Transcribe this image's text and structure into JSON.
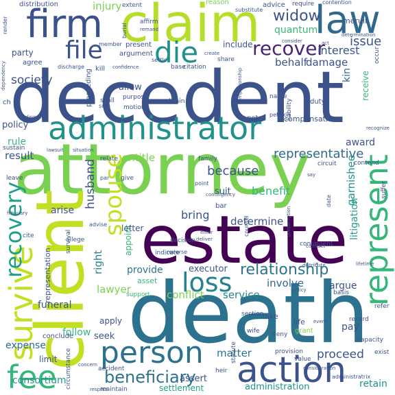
{
  "cloud": {
    "background": "#ffffff",
    "palette": {
      "purple": "#440154",
      "indigo": "#3b528b",
      "blue": "#31688e",
      "teal": "#21918c",
      "green": "#35b779",
      "lime": "#7ad151",
      "yellow": "#c2df23"
    },
    "words": [
      {
        "text": "decedent",
        "color": "#3b528b"
      },
      {
        "text": "attorney",
        "color": "#7ad151"
      },
      {
        "text": "death",
        "color": "#2c728e"
      },
      {
        "text": "estate",
        "color": "#440154"
      },
      {
        "text": "client",
        "color": "#c2df23"
      },
      {
        "text": "claim",
        "color": "#b5de2b"
      },
      {
        "text": "administrator",
        "color": "#21918c"
      },
      {
        "text": "firm",
        "color": "#3b528b"
      },
      {
        "text": "law",
        "color": "#31688e"
      },
      {
        "text": "action",
        "color": "#3b528b"
      },
      {
        "text": "person",
        "color": "#2c728e"
      },
      {
        "text": "survive",
        "color": "#c2df23"
      },
      {
        "text": "fee",
        "color": "#35b779"
      },
      {
        "text": "represent",
        "color": "#35b779"
      },
      {
        "text": "recovery",
        "color": "#1f9e89"
      },
      {
        "text": "loss",
        "color": "#26828e"
      },
      {
        "text": "spouse",
        "color": "#c2df23"
      },
      {
        "text": "die",
        "color": "#21918c"
      },
      {
        "text": "file",
        "color": "#3b528b"
      },
      {
        "text": "recover",
        "color": "#482475"
      },
      {
        "text": "beneficiary",
        "color": "#2c728e"
      },
      {
        "text": "widow",
        "color": "#3b528b"
      },
      {
        "text": "relationship",
        "color": "#2c728e"
      },
      {
        "text": "because",
        "color": "#3b528b"
      },
      {
        "text": "representative",
        "color": "#31688e"
      },
      {
        "text": "issue",
        "color": "#3b528b"
      },
      {
        "text": "husband",
        "color": "#3b528b"
      },
      {
        "text": "right",
        "color": "#26828e"
      },
      {
        "text": "society",
        "color": "#3b528b"
      },
      {
        "text": "injury",
        "color": "#7ad151"
      },
      {
        "text": "interest",
        "color": "#3b528b"
      },
      {
        "text": "behalf",
        "color": "#3b528b"
      },
      {
        "text": "damage",
        "color": "#3b528b"
      },
      {
        "text": "quantum",
        "color": "#35b779"
      },
      {
        "text": "litigation",
        "color": "#1f9e89"
      },
      {
        "text": "garnishee",
        "color": "#21918c"
      },
      {
        "text": "benefit",
        "color": "#35b779"
      },
      {
        "text": "determine",
        "color": "#3b528b"
      },
      {
        "text": "conflict",
        "color": "#7ad151"
      },
      {
        "text": "service",
        "color": "#26828e"
      },
      {
        "text": "bring",
        "color": "#3b528b"
      },
      {
        "text": "consortium",
        "color": "#21918c"
      },
      {
        "text": "administration",
        "color": "#21918c"
      },
      {
        "text": "settlement",
        "color": "#1f9e89"
      },
      {
        "text": "proceed",
        "color": "#3b528b"
      },
      {
        "text": "matter",
        "color": "#2c728e"
      },
      {
        "text": "lawyer",
        "color": "#7ad151"
      },
      {
        "text": "provide",
        "color": "#2c728e"
      },
      {
        "text": "executor",
        "color": "#3b528b"
      },
      {
        "text": "involve",
        "color": "#31688e"
      },
      {
        "text": "argue",
        "color": "#3b528b"
      },
      {
        "text": "policy",
        "color": "#3b528b"
      },
      {
        "text": "rule",
        "color": "#35b779"
      },
      {
        "text": "result",
        "color": "#3b528b"
      },
      {
        "text": "arise",
        "color": "#3b528b"
      },
      {
        "text": "entitle",
        "color": "#7ad151"
      },
      {
        "text": "award",
        "color": "#3b528b"
      },
      {
        "text": "suit",
        "color": "#3b528b"
      },
      {
        "text": "funeral",
        "color": "#3b528b"
      },
      {
        "text": "follow",
        "color": "#35b779"
      },
      {
        "text": "expense",
        "color": "#31688e"
      },
      {
        "text": "limit",
        "color": "#3b528b"
      },
      {
        "text": "seek",
        "color": "#3b528b"
      },
      {
        "text": "apply",
        "color": "#3b528b"
      },
      {
        "text": "allow",
        "color": "#3b528b"
      },
      {
        "text": "kin",
        "color": "#31688e"
      },
      {
        "text": "party",
        "color": "#3b528b"
      },
      {
        "text": "include",
        "color": "#3b528b"
      },
      {
        "text": "present",
        "color": "#3b528b"
      },
      {
        "text": "compensation",
        "color": "#3b528b"
      },
      {
        "text": "receive",
        "color": "#35b779"
      },
      {
        "text": "appoint",
        "color": "#35b779"
      },
      {
        "text": "letter",
        "color": "#3b528b"
      },
      {
        "text": "representation",
        "color": "#3b528b"
      },
      {
        "text": "asset",
        "color": "#35b779"
      },
      {
        "text": "pay",
        "color": "#3b528b"
      },
      {
        "text": "assert",
        "color": "#3b528b"
      },
      {
        "text": "retain",
        "color": "#21918c"
      },
      {
        "text": "distribution",
        "color": "#3b528b"
      },
      {
        "text": "advice",
        "color": "#3b528b"
      },
      {
        "text": "meruit",
        "color": "#3b528b"
      },
      {
        "text": "reason",
        "color": "#7ad151"
      },
      {
        "text": "affirm",
        "color": "#3b528b"
      },
      {
        "text": "argument",
        "color": "#3b528b"
      },
      {
        "text": "citation",
        "color": "#3b528b"
      },
      {
        "text": "note",
        "color": "#3b528b"
      },
      {
        "text": "duty",
        "color": "#3b528b"
      },
      {
        "text": "obtain",
        "color": "#3b528b"
      },
      {
        "text": "shall",
        "color": "#3b528b"
      },
      {
        "text": "agree",
        "color": "#3b528b"
      },
      {
        "text": "sustain",
        "color": "#3b528b"
      },
      {
        "text": "bar",
        "color": "#3b528b"
      },
      {
        "text": "leave",
        "color": "#3b528b"
      },
      {
        "text": "give",
        "color": "#3b528b"
      },
      {
        "text": "name",
        "color": "#3b528b"
      },
      {
        "text": "proceeding",
        "color": "#3b528b"
      },
      {
        "text": "base",
        "color": "#3b528b"
      },
      {
        "text": "share",
        "color": "#3b528b"
      },
      {
        "text": "decision",
        "color": "#3b528b"
      },
      {
        "text": "indicate",
        "color": "#3b528b"
      },
      {
        "text": "support",
        "color": "#35b779"
      },
      {
        "text": "section",
        "color": "#3b528b"
      },
      {
        "text": "take",
        "color": "#3b528b"
      },
      {
        "text": "life",
        "color": "#3b528b"
      },
      {
        "text": "grant",
        "color": "#7ad151"
      },
      {
        "text": "record",
        "color": "#3b528b"
      },
      {
        "text": "refer",
        "color": "#3b528b"
      },
      {
        "text": "capacity",
        "color": "#3b528b"
      },
      {
        "text": "exist",
        "color": "#3b528b"
      },
      {
        "text": "maintain",
        "color": "#3b528b"
      },
      {
        "text": "wife",
        "color": "#3b528b"
      },
      {
        "text": "deny",
        "color": "#3b528b"
      },
      {
        "text": "heir",
        "color": "#3b528b"
      },
      {
        "text": "conclude",
        "color": "#3b528b"
      },
      {
        "text": "family",
        "color": "#3b528b"
      },
      {
        "text": "contingent",
        "color": "#3b528b"
      },
      {
        "text": "basis",
        "color": "#3b528b"
      },
      {
        "text": "provision",
        "color": "#3b528b"
      },
      {
        "text": "statute",
        "color": "#3b528b"
      },
      {
        "text": "accident",
        "color": "#3b528b"
      },
      {
        "text": "extent",
        "color": "#3b528b"
      },
      {
        "text": "value",
        "color": "#3b528b"
      },
      {
        "text": "contend",
        "color": "#3b528b"
      },
      {
        "text": "relate",
        "color": "#3b528b"
      },
      {
        "text": "circuit",
        "color": "#3b528b"
      },
      {
        "text": "allege",
        "color": "#3b528b"
      },
      {
        "text": "cite",
        "color": "#3b528b"
      },
      {
        "text": "survival",
        "color": "#3b528b"
      },
      {
        "text": "suffer",
        "color": "#3b528b"
      },
      {
        "text": "occur",
        "color": "#3b528b"
      },
      {
        "text": "ch",
        "color": "#3b528b"
      },
      {
        "text": "motion",
        "color": "#3b528b"
      },
      {
        "text": "purpose",
        "color": "#3b528b"
      },
      {
        "text": "kill",
        "color": "#3b528b"
      },
      {
        "text": "petition",
        "color": "#3b528b"
      },
      {
        "text": "date",
        "color": "#3b528b"
      },
      {
        "text": "point",
        "color": "#3b528b"
      },
      {
        "text": "discharge",
        "color": "#3b528b"
      },
      {
        "text": "member",
        "color": "#3b528b"
      },
      {
        "text": "require",
        "color": "#3b528b"
      },
      {
        "text": "contention",
        "color": "#3b528b"
      },
      {
        "text": "substitute",
        "color": "#3b528b"
      },
      {
        "text": "determination",
        "color": "#3b528b"
      },
      {
        "text": "administratrix",
        "color": "#3b528b"
      },
      {
        "text": "respect",
        "color": "#3b528b"
      },
      {
        "text": "circumstance",
        "color": "#3b528b"
      },
      {
        "text": "concern",
        "color": "#3b528b"
      },
      {
        "text": "reverse",
        "color": "#3b528b"
      },
      {
        "text": "advise",
        "color": "#3b528b"
      },
      {
        "text": "counsel",
        "color": "#3b528b"
      },
      {
        "text": "distribute",
        "color": "#3b528b"
      },
      {
        "text": "conduct",
        "color": "#3b528b"
      },
      {
        "text": "liability",
        "color": "#3b528b"
      },
      {
        "text": "recognize",
        "color": "#3b528b"
      },
      {
        "text": "dependency",
        "color": "#3b528b"
      },
      {
        "text": "contingency",
        "color": "#3b528b"
      },
      {
        "text": "burial",
        "color": "#3b528b"
      },
      {
        "text": "render",
        "color": "#3b528b"
      },
      {
        "text": "lawsuit",
        "color": "#3b528b"
      },
      {
        "text": "situation",
        "color": "#3b528b"
      },
      {
        "text": "confidence",
        "color": "#3b528b"
      },
      {
        "text": "settle",
        "color": "#3b528b"
      },
      {
        "text": "remand",
        "color": "#3b528b"
      },
      {
        "text": "deliver",
        "color": "#3b528b"
      },
      {
        "text": "disqualify",
        "color": "#3b528b"
      },
      {
        "text": "companionship",
        "color": "#3b528b"
      },
      {
        "text": "event",
        "color": "#3b528b"
      },
      {
        "text": "enter",
        "color": "#3b528b"
      },
      {
        "text": "sum",
        "color": "#3b528b"
      },
      {
        "text": "par",
        "color": "#3b528b"
      },
      {
        "text": "say",
        "color": "#3b528b"
      },
      {
        "text": "act",
        "color": "#3b528b"
      },
      {
        "text": "lifetime",
        "color": "#3b528b"
      },
      {
        "text": "consider",
        "color": "#3b528b"
      },
      {
        "text": "presumption",
        "color": "#3b528b"
      },
      {
        "text": "consideration",
        "color": "#3b528b"
      },
      {
        "text": "policy",
        "color": "#3b528b"
      },
      {
        "text": "fiduciary",
        "color": "#3b528b"
      },
      {
        "text": "create",
        "color": "#3b528b"
      }
    ]
  }
}
